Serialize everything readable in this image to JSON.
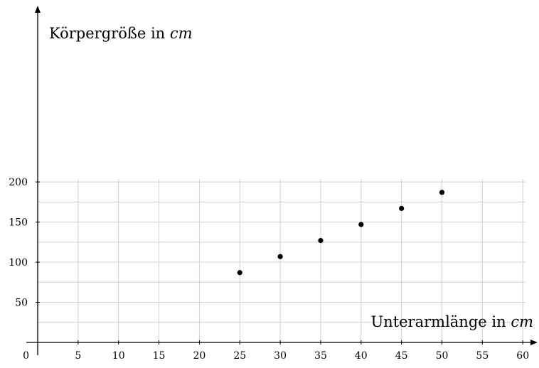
{
  "chart_data": {
    "type": "scatter",
    "xlabel": "Unterarmlänge in",
    "xlabel_unit": "cm",
    "ylabel": "Körpergröße in",
    "ylabel_unit": "cm",
    "origin_label": "0",
    "xlim": [
      0,
      60
    ],
    "ylim": [
      0,
      200
    ],
    "xticks": [
      5,
      10,
      15,
      20,
      25,
      30,
      35,
      40,
      45,
      50,
      55,
      60
    ],
    "yticks": [
      50,
      100,
      150,
      200
    ],
    "grid": true,
    "points": [
      {
        "x": 25,
        "y": 87
      },
      {
        "x": 30,
        "y": 107
      },
      {
        "x": 35,
        "y": 127
      },
      {
        "x": 40,
        "y": 147
      },
      {
        "x": 45,
        "y": 167
      },
      {
        "x": 50,
        "y": 187
      }
    ]
  }
}
